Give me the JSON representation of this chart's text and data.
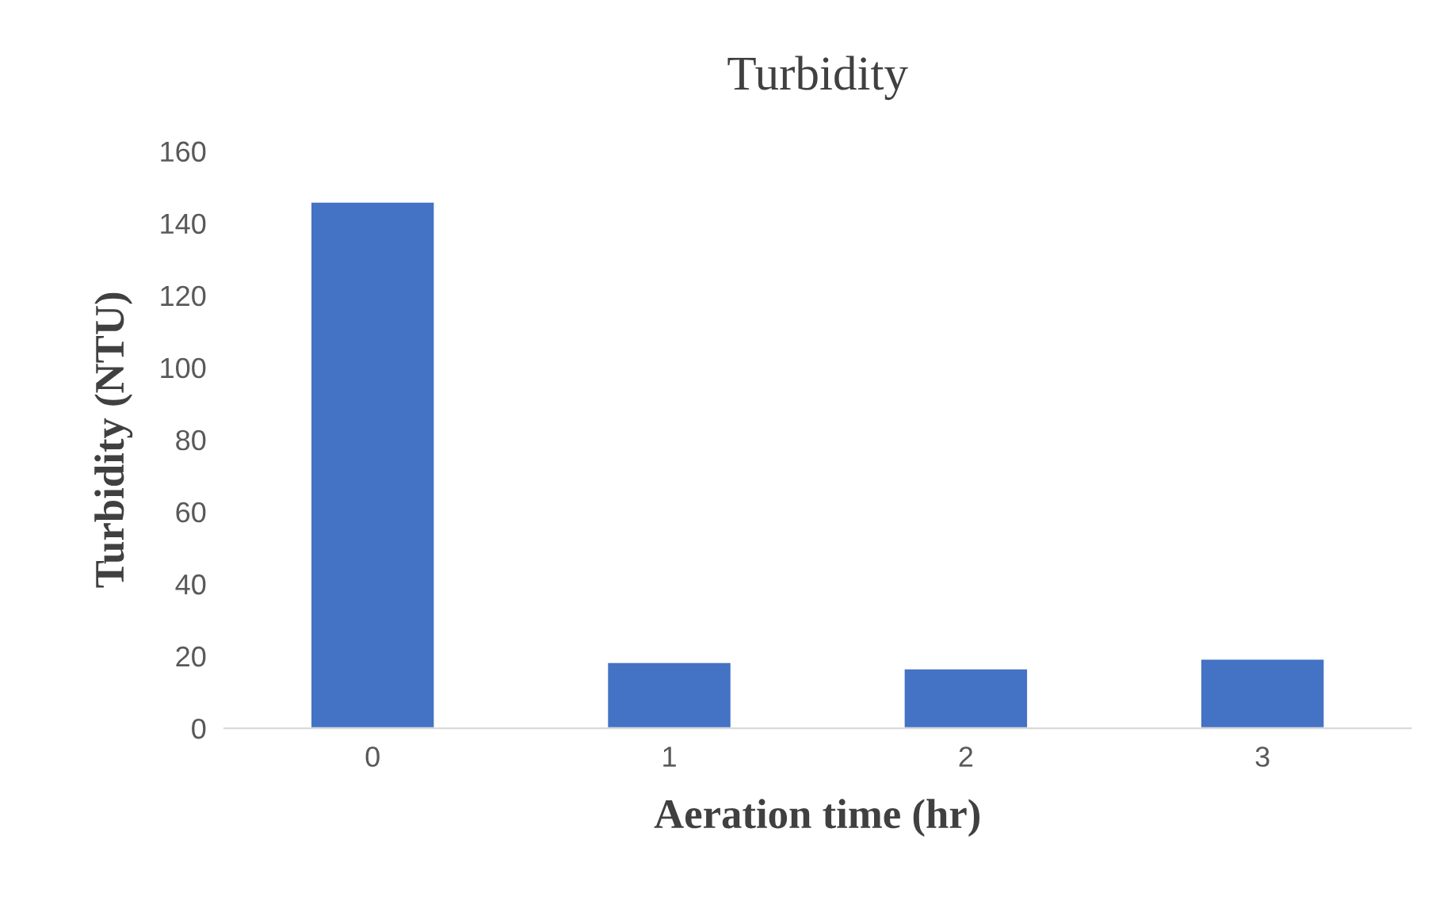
{
  "chart_data": {
    "type": "bar",
    "title": "Turbidity",
    "xlabel": "Aeration time (hr)",
    "ylabel": "Turbidity (NTU)",
    "categories": [
      "0",
      "1",
      "2",
      "3"
    ],
    "values": [
      146,
      18.4,
      16.6,
      19.3
    ],
    "color": "#4472c4",
    "ylim": [
      0,
      160
    ],
    "yticks": [
      0,
      20,
      40,
      60,
      80,
      100,
      120,
      140,
      160
    ],
    "grid": false,
    "legend": false
  }
}
